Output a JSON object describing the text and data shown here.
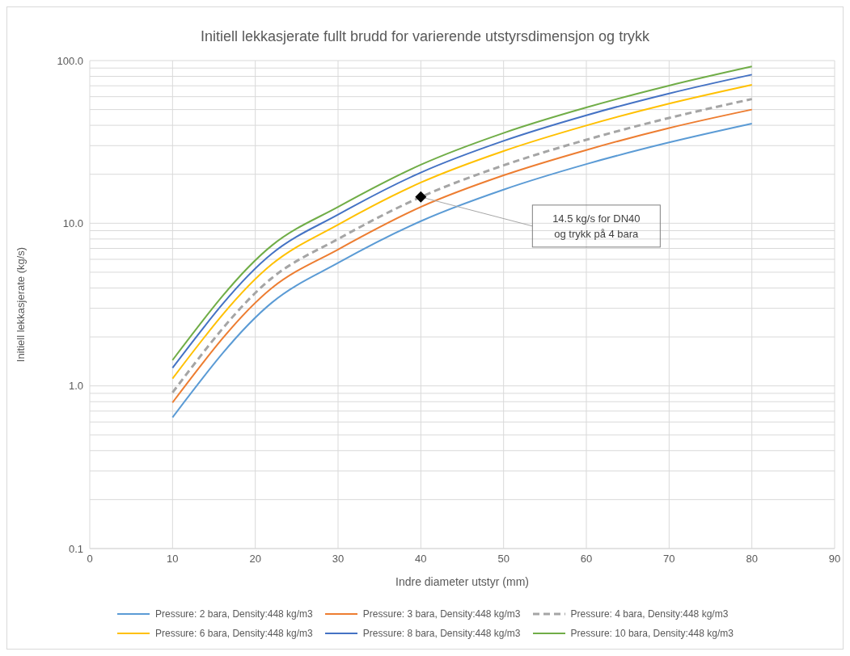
{
  "chart_data": {
    "type": "line",
    "title": "Initiell lekkasjerate fullt brudd for varierende utstyrsdimensjon og trykk",
    "xlabel": "Indre diameter utstyr (mm)",
    "ylabel": "Initiell lekkasjerate (kg/s)",
    "x": [
      10,
      22,
      30,
      40,
      50,
      60,
      70,
      80
    ],
    "series": [
      {
        "name": "Pressure: 2 bara, Density:448 kg/m3",
        "color": "#5b9bd5",
        "values": [
          0.64,
          3.25,
          5.7,
          10.3,
          16.1,
          23.1,
          31.4,
          41
        ]
      },
      {
        "name": "Pressure: 3 bara, Density:448 kg/m3",
        "color": "#ed7d31",
        "values": [
          0.79,
          4.0,
          6.9,
          12.6,
          19.7,
          28.2,
          38.5,
          50
        ]
      },
      {
        "name": "Pressure: 4 bara, Density:448 kg/m3",
        "color": "#a5a5a5",
        "line_style": "dashed",
        "values": [
          0.91,
          4.6,
          8.0,
          14.5,
          22.7,
          32.6,
          44.4,
          58
        ]
      },
      {
        "name": "Pressure: 6 bara, Density:448 kg/m3",
        "color": "#ffc000",
        "values": [
          1.11,
          5.6,
          9.8,
          17.8,
          27.8,
          39.9,
          54.4,
          71
        ]
      },
      {
        "name": "Pressure: 8 bara, Density:448 kg/m3",
        "color": "#4472c4",
        "values": [
          1.29,
          6.5,
          11.3,
          20.5,
          32.1,
          46.1,
          62.8,
          82
        ]
      },
      {
        "name": "Pressure: 10 bara, Density:448 kg/m3",
        "color": "#70ad47",
        "values": [
          1.44,
          7.3,
          12.6,
          22.9,
          35.9,
          51.5,
          70.2,
          92
        ]
      },
      {
        "type": "scatter",
        "x": [
          40
        ],
        "values": [
          14.5
        ],
        "color": "#000000",
        "marker": "diamond"
      }
    ],
    "annotations": [
      "14.5 kg/s for DN40\nog trykk på 4 bara"
    ],
    "xlim": [
      0,
      90
    ],
    "xticks": [
      0,
      10,
      20,
      30,
      40,
      50,
      60,
      70,
      80,
      90
    ],
    "ylim": [
      0.1,
      100
    ],
    "yticks": [
      {
        "value": 0.1,
        "label": "0.1"
      },
      {
        "value": 0.2,
        "label": null
      },
      {
        "value": 0.3,
        "label": null
      },
      {
        "value": 0.4,
        "label": null
      },
      {
        "value": 0.5,
        "label": null
      },
      {
        "value": 0.6,
        "label": null
      },
      {
        "value": 0.7,
        "label": null
      },
      {
        "value": 0.8,
        "label": null
      },
      {
        "value": 0.9,
        "label": null
      },
      {
        "value": 1,
        "label": "1.0"
      },
      {
        "value": 2,
        "label": null
      },
      {
        "value": 3,
        "label": null
      },
      {
        "value": 4,
        "label": null
      },
      {
        "value": 5,
        "label": null
      },
      {
        "value": 6,
        "label": null
      },
      {
        "value": 7,
        "label": null
      },
      {
        "value": 8,
        "label": null
      },
      {
        "value": 9,
        "label": null
      },
      {
        "value": 10,
        "label": "10.0"
      },
      {
        "value": 20,
        "label": null
      },
      {
        "value": 30,
        "label": null
      },
      {
        "value": 40,
        "label": null
      },
      {
        "value": 50,
        "label": null
      },
      {
        "value": 60,
        "label": null
      },
      {
        "value": 70,
        "label": null
      },
      {
        "value": 80,
        "label": null
      },
      {
        "value": 90,
        "label": null
      },
      {
        "value": 100,
        "label": "100.0"
      }
    ],
    "log": "y",
    "grid": true,
    "legend": "bottom",
    "marker": "none",
    "line_style": "solid"
  }
}
